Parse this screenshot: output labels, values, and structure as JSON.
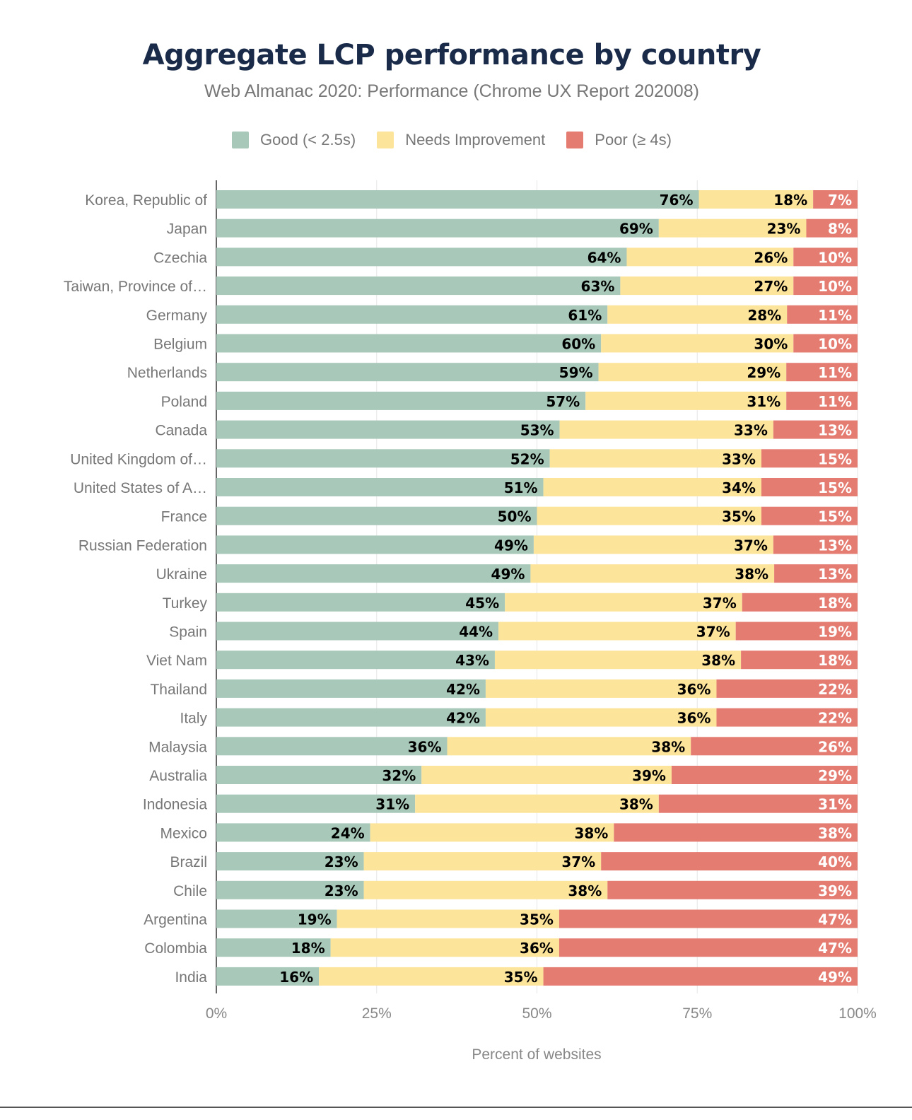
{
  "chart_data": {
    "type": "bar",
    "orientation": "horizontal",
    "stacked": true,
    "title": "Aggregate LCP performance by country",
    "subtitle": "Web Almanac 2020: Performance (Chrome UX Report 202008)",
    "xlabel": "Percent of websites",
    "ylabel": "",
    "xlim": [
      0,
      100
    ],
    "x_ticks": [
      "0%",
      "25%",
      "50%",
      "75%",
      "100%"
    ],
    "grid": true,
    "legend_position": "top",
    "categories": [
      "Korea, Republic of",
      "Japan",
      "Czechia",
      "Taiwan, Province of…",
      "Germany",
      "Belgium",
      "Netherlands",
      "Poland",
      "Canada",
      "United Kingdom of…",
      "United States of A…",
      "France",
      "Russian Federation",
      "Ukraine",
      "Turkey",
      "Spain",
      "Viet Nam",
      "Thailand",
      "Italy",
      "Malaysia",
      "Australia",
      "Indonesia",
      "Mexico",
      "Brazil",
      "Chile",
      "Argentina",
      "Colombia",
      "India"
    ],
    "series": [
      {
        "name": "Good (< 2.5s)",
        "color": "#a8c9b9",
        "label_color": "#000000",
        "values": [
          76,
          69,
          64,
          63,
          61,
          60,
          59,
          57,
          53,
          52,
          51,
          50,
          49,
          49,
          45,
          44,
          43,
          42,
          42,
          36,
          32,
          31,
          24,
          23,
          23,
          19,
          18,
          16
        ]
      },
      {
        "name": "Needs Improvement",
        "color": "#fde49b",
        "label_color": "#000000",
        "values": [
          18,
          23,
          26,
          27,
          28,
          30,
          29,
          31,
          33,
          33,
          34,
          35,
          37,
          38,
          37,
          37,
          38,
          36,
          36,
          38,
          39,
          38,
          38,
          37,
          38,
          35,
          36,
          35
        ]
      },
      {
        "name": "Poor (≥ 4s)",
        "color": "#e57c72",
        "label_color": "#ffffff",
        "values": [
          7,
          8,
          10,
          10,
          11,
          10,
          11,
          11,
          13,
          15,
          15,
          15,
          13,
          13,
          18,
          19,
          18,
          22,
          22,
          26,
          29,
          31,
          38,
          40,
          39,
          47,
          47,
          49
        ]
      }
    ]
  }
}
